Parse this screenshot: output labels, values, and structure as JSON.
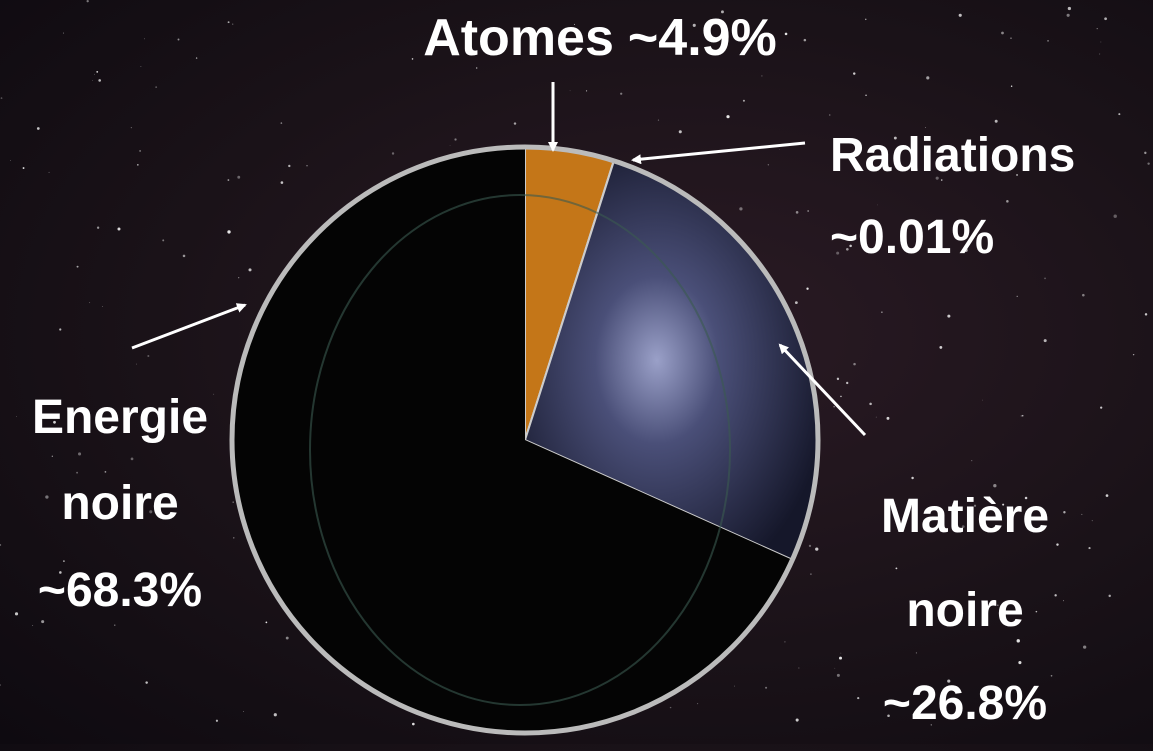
{
  "chart_data": {
    "type": "pie",
    "categories": [
      "Atomes",
      "Radiations",
      "Matière noire",
      "Energie noire"
    ],
    "values": [
      4.9,
      0.01,
      26.8,
      68.3
    ],
    "value_labels": [
      "~4.9%",
      "~0.01%",
      "~26.8%",
      "~68.3%"
    ],
    "colors": [
      "#c47618",
      "#3fa7cf",
      "#1c1f33",
      "#040404"
    ]
  }
}
